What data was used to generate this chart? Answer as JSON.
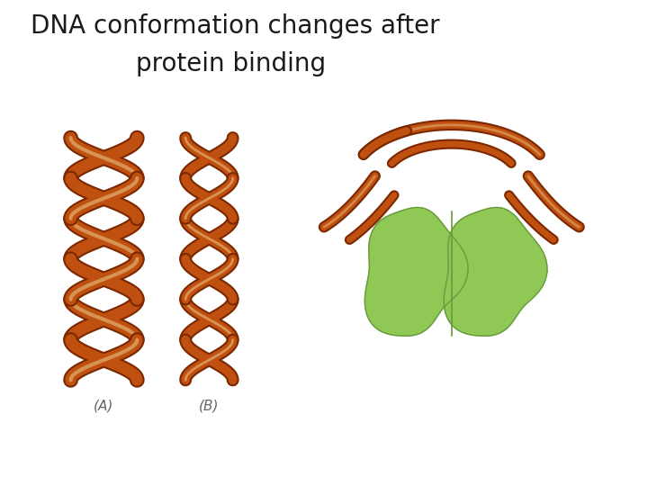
{
  "title_line1": "DNA conformation changes after",
  "title_line2": "protein binding",
  "title_fontsize": 20,
  "title_color": "#1a1a1a",
  "label_A": "(A)",
  "label_B": "(B)",
  "label_fontsize": 11,
  "label_color": "#666666",
  "background_color": "#ffffff",
  "dna_edge_dark": "#7B2800",
  "dna_mid": "#C05010",
  "dna_inner": "#E8C080",
  "protein_fill": "#90C855",
  "protein_edge": "#6a9a40",
  "protein_shadow": "#7aaa45",
  "figsize": [
    7.2,
    5.4
  ],
  "dpi": 100
}
